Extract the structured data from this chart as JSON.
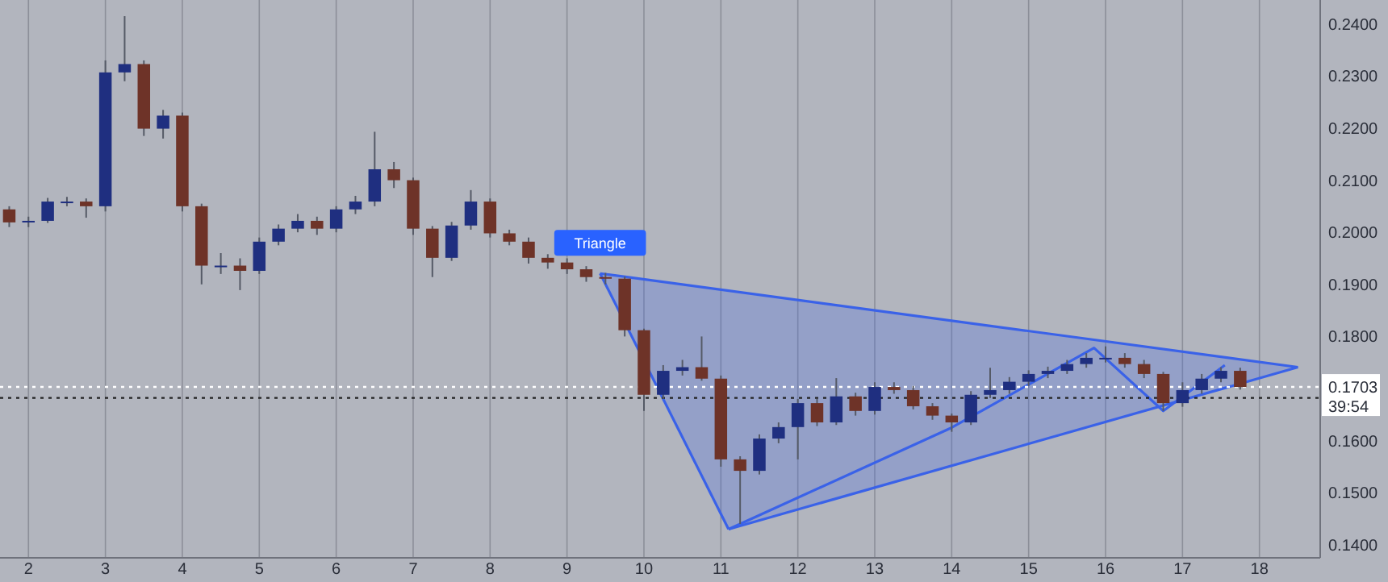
{
  "chart_data": {
    "type": "candlestick",
    "x": [
      1.75,
      2,
      2.25,
      2.5,
      2.75,
      3,
      3.25,
      3.5,
      3.75,
      4,
      4.25,
      4.5,
      4.75,
      5,
      5.25,
      5.5,
      5.75,
      6,
      6.25,
      6.5,
      6.75,
      7,
      7.25,
      7.5,
      7.75,
      8,
      8.25,
      8.5,
      8.75,
      9,
      9.25,
      9.5,
      9.75,
      10,
      10.25,
      10.5,
      10.75,
      11,
      11.25,
      11.5,
      11.75,
      12,
      12.25,
      12.5,
      12.75,
      13,
      13.25,
      13.5,
      13.75,
      14,
      14.25,
      14.5,
      14.75,
      15,
      15.25,
      15.5,
      15.75,
      16,
      16.25,
      16.5,
      16.75,
      17,
      17.25,
      17.5,
      17.75
    ],
    "ohlc": [
      [
        0.2044,
        0.205,
        0.201,
        0.2019
      ],
      [
        0.2019,
        0.203,
        0.201,
        0.2022
      ],
      [
        0.2022,
        0.2066,
        0.2018,
        0.2059
      ],
      [
        0.2059,
        0.2068,
        0.205,
        0.2059
      ],
      [
        0.2059,
        0.2065,
        0.2028,
        0.205
      ],
      [
        0.205,
        0.233,
        0.204,
        0.2307
      ],
      [
        0.2307,
        0.2415,
        0.229,
        0.2323
      ],
      [
        0.2323,
        0.233,
        0.2185,
        0.2199
      ],
      [
        0.2199,
        0.2235,
        0.218,
        0.2224
      ],
      [
        0.2224,
        0.223,
        0.204,
        0.205
      ],
      [
        0.205,
        0.2055,
        0.19,
        0.1936
      ],
      [
        0.1936,
        0.196,
        0.192,
        0.1936
      ],
      [
        0.1936,
        0.195,
        0.1889,
        0.1926
      ],
      [
        0.1926,
        0.199,
        0.192,
        0.1982
      ],
      [
        0.1982,
        0.2015,
        0.1975,
        0.2007
      ],
      [
        0.2007,
        0.2035,
        0.2,
        0.2022
      ],
      [
        0.2022,
        0.203,
        0.1995,
        0.2007
      ],
      [
        0.2007,
        0.205,
        0.2,
        0.2044
      ],
      [
        0.2044,
        0.207,
        0.2035,
        0.2059
      ],
      [
        0.2059,
        0.2193,
        0.205,
        0.2121
      ],
      [
        0.2121,
        0.2135,
        0.2085,
        0.21
      ],
      [
        0.21,
        0.2105,
        0.1995,
        0.2007
      ],
      [
        0.2007,
        0.2012,
        0.1914,
        0.1951
      ],
      [
        0.1951,
        0.202,
        0.1945,
        0.2013
      ],
      [
        0.2013,
        0.2081,
        0.2005,
        0.2059
      ],
      [
        0.2059,
        0.2065,
        0.199,
        0.1998
      ],
      [
        0.1998,
        0.2005,
        0.1975,
        0.1982
      ],
      [
        0.1982,
        0.199,
        0.194,
        0.1951
      ],
      [
        0.1951,
        0.1958,
        0.193,
        0.1942
      ],
      [
        0.1942,
        0.195,
        0.192,
        0.1929
      ],
      [
        0.1929,
        0.1935,
        0.1905,
        0.1914
      ],
      [
        0.1914,
        0.1922,
        0.19,
        0.1911
      ],
      [
        0.1911,
        0.1915,
        0.18,
        0.1812
      ],
      [
        0.1812,
        0.1815,
        0.1657,
        0.1688
      ],
      [
        0.1688,
        0.1745,
        0.168,
        0.1734
      ],
      [
        0.1734,
        0.1755,
        0.1725,
        0.1741
      ],
      [
        0.1741,
        0.18,
        0.1715,
        0.1719
      ],
      [
        0.1719,
        0.1725,
        0.155,
        0.1564
      ],
      [
        0.1564,
        0.157,
        0.144,
        0.1542
      ],
      [
        0.1542,
        0.1612,
        0.1535,
        0.1604
      ],
      [
        0.1604,
        0.1635,
        0.1595,
        0.1626
      ],
      [
        0.1626,
        0.168,
        0.1564,
        0.1672
      ],
      [
        0.1672,
        0.168,
        0.1628,
        0.1635
      ],
      [
        0.1635,
        0.172,
        0.163,
        0.1685
      ],
      [
        0.1685,
        0.1692,
        0.1648,
        0.1657
      ],
      [
        0.1657,
        0.1712,
        0.165,
        0.1703
      ],
      [
        0.1703,
        0.1712,
        0.169,
        0.1697
      ],
      [
        0.1697,
        0.1705,
        0.166,
        0.1666
      ],
      [
        0.1666,
        0.1672,
        0.164,
        0.1648
      ],
      [
        0.1648,
        0.1652,
        0.1617,
        0.1635
      ],
      [
        0.1635,
        0.1695,
        0.163,
        0.1688
      ],
      [
        0.1688,
        0.174,
        0.1682,
        0.1697
      ],
      [
        0.1697,
        0.1722,
        0.169,
        0.1713
      ],
      [
        0.1713,
        0.1735,
        0.1705,
        0.1728
      ],
      [
        0.1728,
        0.1742,
        0.172,
        0.1734
      ],
      [
        0.1734,
        0.1755,
        0.1728,
        0.1747
      ],
      [
        0.1747,
        0.1768,
        0.174,
        0.1759
      ],
      [
        0.1759,
        0.1781,
        0.175,
        0.1759
      ],
      [
        0.1759,
        0.1768,
        0.174,
        0.1747
      ],
      [
        0.1747,
        0.1755,
        0.172,
        0.1728
      ],
      [
        0.1728,
        0.1732,
        0.1657,
        0.1672
      ],
      [
        0.1672,
        0.1712,
        0.1665,
        0.1697
      ],
      [
        0.1697,
        0.1728,
        0.169,
        0.1719
      ],
      [
        0.1719,
        0.1741,
        0.1712,
        0.1734
      ],
      [
        0.1734,
        0.174,
        0.1698,
        0.1703
      ]
    ],
    "series": [
      {
        "type": "line",
        "color": "#3a62e8",
        "x": [
          9.43,
          18.5
        ],
        "values": [
          0.1921,
          0.1741
        ]
      },
      {
        "type": "line",
        "color": "#3a62e8",
        "x": [
          9.43,
          11.1
        ],
        "values": [
          0.1921,
          0.143
        ]
      },
      {
        "type": "line",
        "color": "#3a62e8",
        "x": [
          11.1,
          18.5
        ],
        "values": [
          0.143,
          0.1741
        ]
      },
      {
        "type": "line",
        "color": "#3a62e8",
        "x": [
          11.1,
          14.0,
          15.85,
          16.75,
          17.55
        ],
        "values": [
          0.143,
          0.1625,
          0.1778,
          0.1657,
          0.1745
        ]
      }
    ],
    "xlim": [
      1.63,
      18.79
    ],
    "ylim": [
      0.1375,
      0.2446
    ],
    "xticks": [
      2,
      3,
      4,
      5,
      6,
      7,
      8,
      9,
      10,
      11,
      12,
      13,
      14,
      15,
      16,
      17,
      18
    ],
    "yticks": [
      {
        "value": 0.14,
        "label": "0.1400"
      },
      {
        "value": 0.15,
        "label": "0.1500"
      },
      {
        "value": 0.16,
        "label": "0.1600"
      },
      {
        "value": 0.18,
        "label": "0.1800"
      },
      {
        "value": 0.19,
        "label": "0.1900"
      },
      {
        "value": 0.2,
        "label": "0.2000"
      },
      {
        "value": 0.21,
        "label": "0.2100"
      },
      {
        "value": 0.22,
        "label": "0.2200"
      },
      {
        "value": 0.23,
        "label": "0.2300"
      },
      {
        "value": 0.24,
        "label": "0.2400"
      }
    ],
    "grid": "x",
    "ref_lines": [
      {
        "axis": "y",
        "value": 0.1703,
        "label": "0.1703",
        "color": "#ffffff",
        "line_style": "dotted"
      },
      {
        "axis": "y",
        "value": 0.1682,
        "color": "#222222",
        "line_style": "dotted"
      }
    ],
    "annotations": [
      "Triangle",
      "39:54"
    ]
  }
}
